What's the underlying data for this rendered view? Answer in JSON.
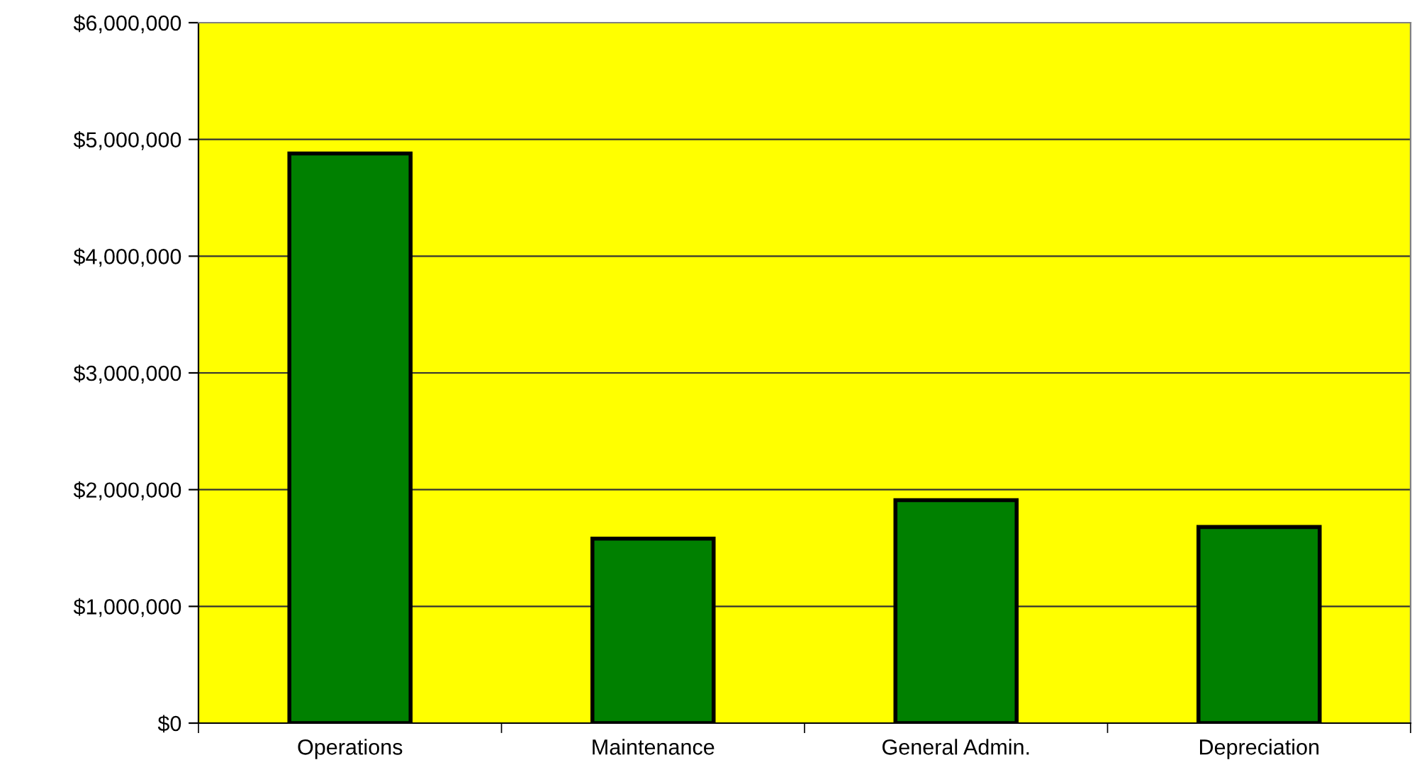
{
  "chart_data": {
    "type": "bar",
    "categories": [
      "Operations",
      "Maintenance",
      "General Admin.",
      "Depreciation"
    ],
    "values": [
      4880000,
      1580000,
      1910000,
      1680000
    ],
    "color": "#008000",
    "ylim": [
      0,
      6000000
    ],
    "yticks": [
      {
        "value": 0,
        "label": "$0"
      },
      {
        "value": 1000000,
        "label": "$1,000,000"
      },
      {
        "value": 2000000,
        "label": "$2,000,000"
      },
      {
        "value": 3000000,
        "label": "$3,000,000"
      },
      {
        "value": 4000000,
        "label": "$4,000,000"
      },
      {
        "value": 5000000,
        "label": "$5,000,000"
      },
      {
        "value": 6000000,
        "label": "$6,000,000"
      }
    ],
    "grid": "y",
    "legend": false
  }
}
